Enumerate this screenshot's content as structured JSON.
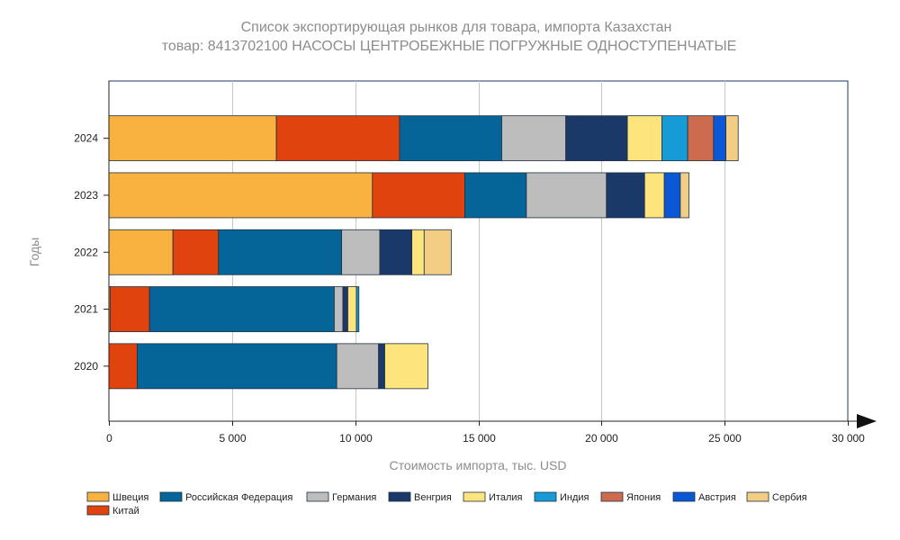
{
  "chart_data": {
    "type": "bar",
    "orientation": "horizontal",
    "stacked": true,
    "title": "Список экспортирующая рынков для товара, импорта Казахстан",
    "subtitle": "товар: 8413702100 НАСОСЫ ЦЕНТРОБЕЖНЫЕ ПОГРУЖНЫЕ ОДНОСТУПЕНЧАТЫЕ",
    "xlabel": "Стоимость импорта, тыс. USD",
    "ylabel": "Годы",
    "xlim": [
      0,
      30000
    ],
    "xticks": [
      0,
      5000,
      10000,
      15000,
      20000,
      25000,
      30000
    ],
    "xtick_labels": [
      "0",
      "5 000",
      "10 000",
      "15 000",
      "20 000",
      "25 000",
      "30 000"
    ],
    "grid": "vertical",
    "legend_position": "bottom",
    "categories": [
      "2024",
      "2023",
      "2022",
      "2021",
      "2020"
    ],
    "series": [
      {
        "name": "Швеция",
        "color": "#f9b240",
        "values": [
          6800,
          10700,
          2600,
          50,
          0
        ]
      },
      {
        "name": "Китай",
        "color": "#e0430e",
        "values": [
          5000,
          3750,
          1850,
          1600,
          1150
        ]
      },
      {
        "name": "Российская Федерация",
        "color": "#066598",
        "values": [
          4150,
          2500,
          5000,
          7500,
          8100
        ]
      },
      {
        "name": "Германия",
        "color": "#bdbdbd",
        "values": [
          2600,
          3250,
          1550,
          350,
          1700
        ]
      },
      {
        "name": "Венгрия",
        "color": "#1a3868",
        "values": [
          2500,
          1550,
          1300,
          200,
          250
        ]
      },
      {
        "name": "Италия",
        "color": "#fde47d",
        "values": [
          1400,
          800,
          500,
          350,
          1750
        ]
      },
      {
        "name": "Индия",
        "color": "#179bd7",
        "values": [
          1050,
          0,
          0,
          100,
          0
        ]
      },
      {
        "name": "Япония",
        "color": "#cd6b4f",
        "values": [
          1050,
          0,
          0,
          0,
          0
        ]
      },
      {
        "name": "Австрия",
        "color": "#0b58d6",
        "values": [
          500,
          650,
          0,
          0,
          0
        ]
      },
      {
        "name": "Сербия",
        "color": "#f3cd84",
        "values": [
          500,
          350,
          1100,
          0,
          0
        ]
      }
    ]
  }
}
